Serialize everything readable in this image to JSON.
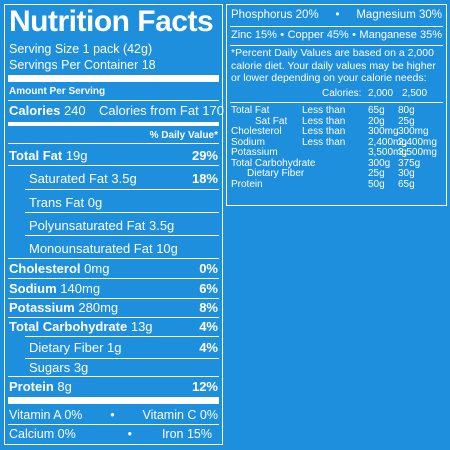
{
  "left": {
    "title": "Nutrition Facts",
    "serving_size": "Serving Size 1 pack (42g)",
    "servings_per_container": "Servings Per Container 18",
    "amount_per_serving": "Amount Per Serving",
    "calories_label": "Calories",
    "calories_value": "240",
    "calories_fat": "Calories from Fat 170",
    "daily_value_header": "% Daily Value*",
    "nutrients": [
      {
        "label": "Total Fat",
        "amount": "19g",
        "pct": "29%"
      },
      {
        "label": "Saturated Fat",
        "amount": "3.5g",
        "pct": "18%"
      },
      {
        "label": "Trans Fat",
        "amount": "0g",
        "pct": ""
      },
      {
        "label": "Polyunsaturated Fat",
        "amount": "3.5g",
        "pct": ""
      },
      {
        "label": "Monounsaturated Fat",
        "amount": "10g",
        "pct": ""
      },
      {
        "label": "Cholesterol",
        "amount": "0mg",
        "pct": "0%"
      },
      {
        "label": "Sodium",
        "amount": "140mg",
        "pct": "6%"
      },
      {
        "label": "Potassium",
        "amount": "280mg",
        "pct": "8%"
      },
      {
        "label": "Total Carbohydrate",
        "amount": "13g",
        "pct": "4%"
      },
      {
        "label": "Dietary Fiber",
        "amount": "1g",
        "pct": "4%"
      },
      {
        "label": "Sugars",
        "amount": "3g",
        "pct": ""
      },
      {
        "label": "Protein",
        "amount": "8g",
        "pct": "12%"
      }
    ],
    "vitamins": [
      {
        "left": "Vitamin A 0%",
        "right": "Vitamin C 0%"
      },
      {
        "left": "Calcium 0%",
        "right": "Iron 15%"
      }
    ]
  },
  "right": {
    "minerals": [
      {
        "left": "Phosphorus 20%",
        "right": "Magnesium 30%"
      },
      {
        "left": "Zinc 15%",
        "mid": "Copper 45%",
        "right": "Manganese 35%"
      }
    ],
    "footnote": "*Percent Daily Values are based on a 2,000 calorie diet. Your daily values may be higher or lower depending on your calorie needs:",
    "table_header": {
      "label": "Calories:",
      "col1": "2,000",
      "col2": "2,500"
    },
    "table_rows": [
      {
        "name": "Total Fat",
        "cond": "Less than",
        "v1": "65g",
        "v2": "80g"
      },
      {
        "name": "Sat Fat",
        "cond": "Less than",
        "v1": "20g",
        "v2": "25g"
      },
      {
        "name": "Cholesterol",
        "cond": "Less than",
        "v1": "300mg",
        "v2": "300mg"
      },
      {
        "name": "Sodium",
        "cond": "Less than",
        "v1": "2,400mg",
        "v2": "2,400mg"
      },
      {
        "name": "Potassium",
        "cond": "",
        "v1": "3,500mg",
        "v2": "3,500mg"
      },
      {
        "name": "Total Carbohydrate",
        "cond": "",
        "v1": "300g",
        "v2": "375g"
      },
      {
        "name": "Dietary Fiber",
        "cond": "",
        "v1": "25g",
        "v2": "30g"
      },
      {
        "name": "Protein",
        "cond": "",
        "v1": "50g",
        "v2": "65g"
      }
    ]
  },
  "colors": {
    "background": "#1e8fdc",
    "foreground": "#ffffff"
  }
}
